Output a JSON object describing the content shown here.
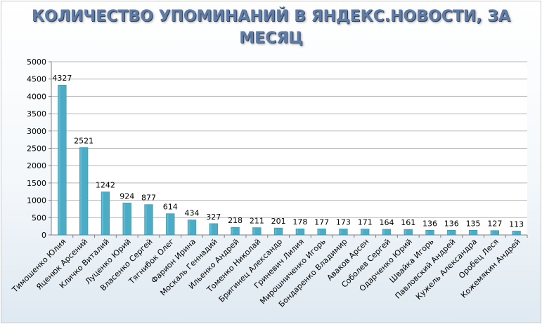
{
  "chart_data": {
    "type": "bar",
    "title_lines": [
      "КОЛИЧЕСТВО УПОМИНАНИЙ В ЯНДЕКС.НОВОСТИ, ЗА",
      "МЕСЯЦ"
    ],
    "categories": [
      "Тимошенко Юлия",
      "Яценюк Арсений",
      "Кличко Виталий",
      "Луценко Юрий",
      "Власенко Сергей",
      "Тягнибок Олег",
      "Фарион Ирина",
      "Москаль Геннадий",
      "Ильенко Андрей",
      "Томенко Николай",
      "Бригинец Александр",
      "Гриневич Лилия",
      "Мирошниченко Игорь",
      "Бондаренко Владимир",
      "Аваков Арсен",
      "Соболев Сергей",
      "Одарченко Юрий",
      "Швайка Игорь",
      "Павловский Андрей",
      "Кужель Александра",
      "Оробец Леся",
      "Кожемякин Андрей"
    ],
    "values": [
      4327,
      2521,
      1242,
      924,
      877,
      614,
      434,
      327,
      218,
      211,
      201,
      178,
      177,
      173,
      171,
      164,
      161,
      136,
      136,
      135,
      127,
      113
    ],
    "ylim": [
      0,
      5000
    ],
    "yticks": [
      "0",
      "500",
      "1000",
      "1500",
      "2000",
      "2500",
      "3000",
      "3500",
      "4000",
      "4500",
      "5000"
    ],
    "bar_color": "#4bacc6",
    "grid": true,
    "legend": "none"
  }
}
